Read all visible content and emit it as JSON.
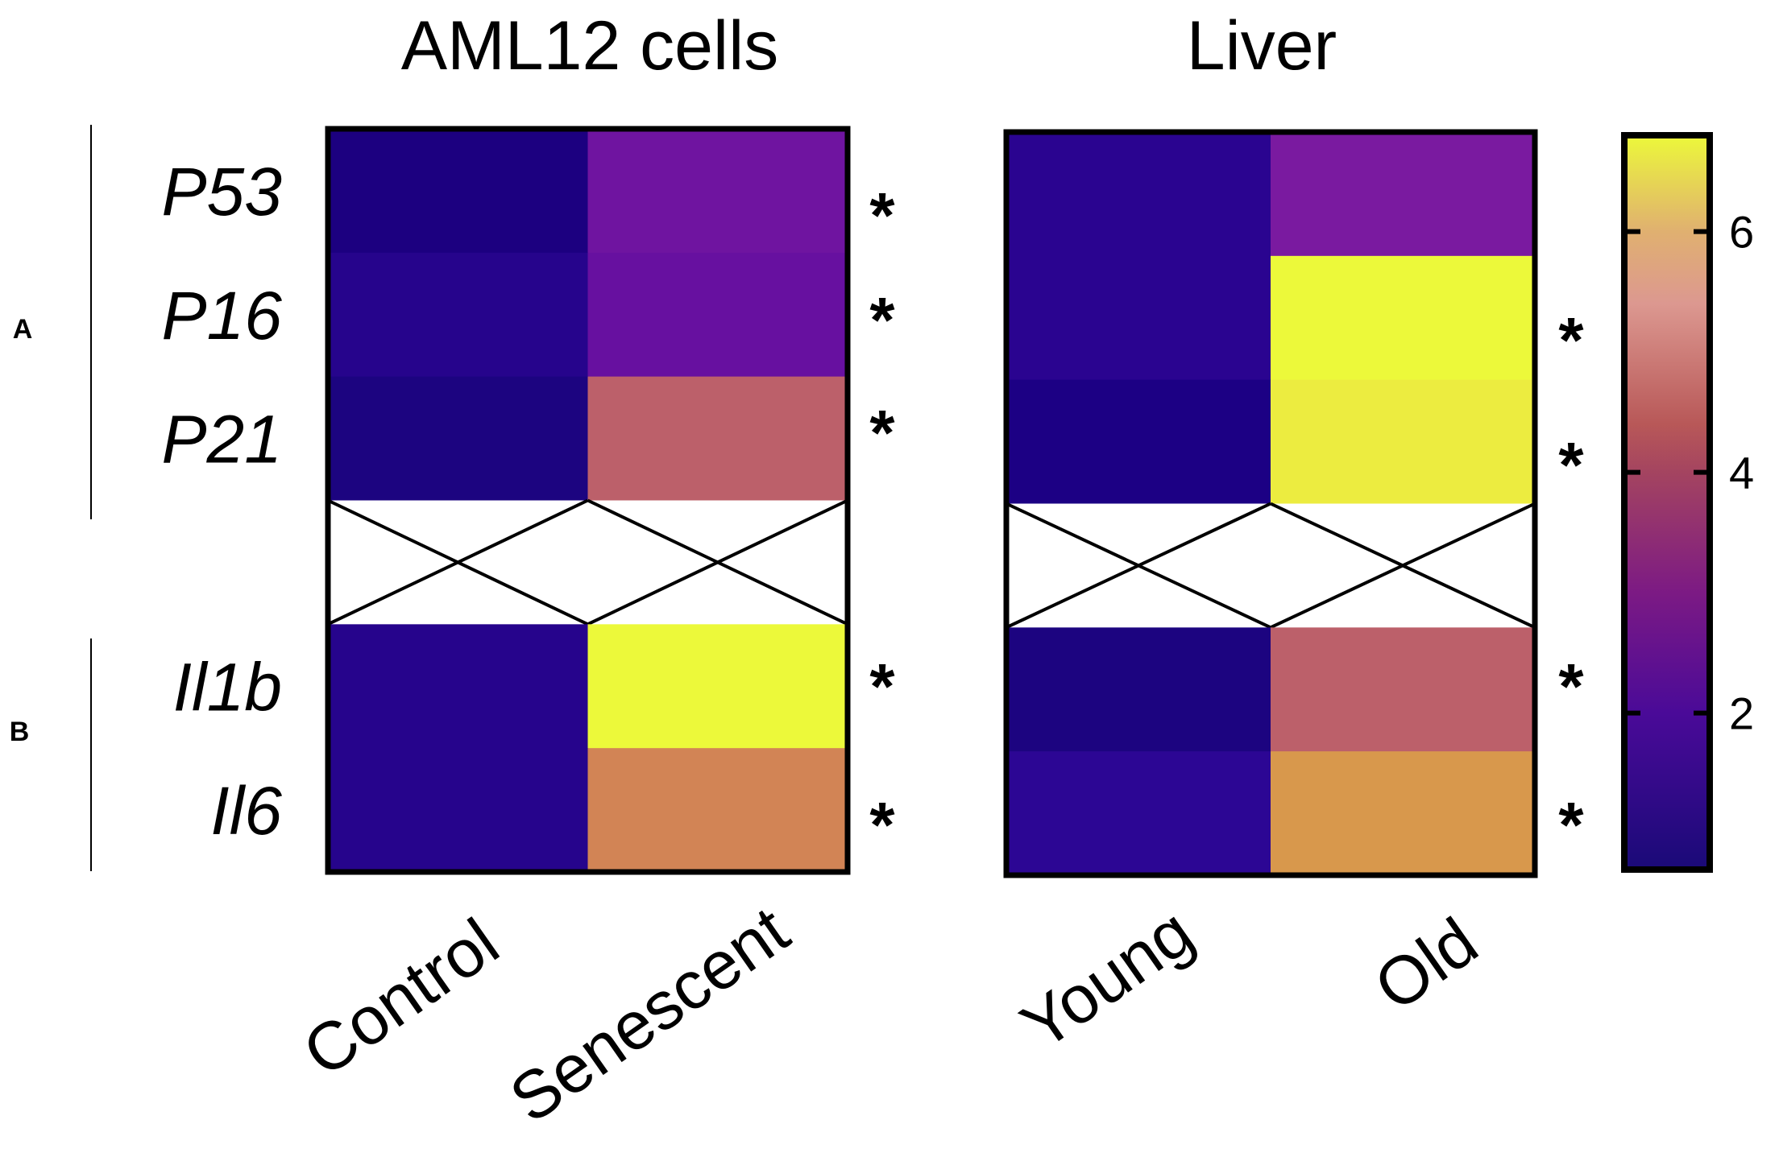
{
  "chart_data": [
    {
      "type": "heatmap",
      "title": "AML12 cells",
      "columns": [
        "Control",
        "Senescent"
      ],
      "rows": [
        "P53",
        "P16",
        "P21",
        "",
        "Il1b",
        "Il6"
      ],
      "row_groups": [
        {
          "label": "A",
          "rows": [
            "P53",
            "P16",
            "P21"
          ]
        },
        {
          "label": "B",
          "rows": [
            "Il1b",
            "Il6"
          ]
        }
      ],
      "values": [
        [
          1.0,
          2.4
        ],
        [
          1.2,
          2.2
        ],
        [
          1.0,
          4.6
        ],
        [
          null,
          null
        ],
        [
          1.2,
          6.8
        ],
        [
          1.2,
          5.5
        ]
      ],
      "colors": [
        [
          "#1c0080",
          "#6f14a0"
        ],
        [
          "#26048c",
          "#6710a0"
        ],
        [
          "#1c0480",
          "#bc606a"
        ],
        [
          null,
          null
        ],
        [
          "#26048c",
          "#ecf93a"
        ],
        [
          "#26048c",
          "#d28455"
        ]
      ],
      "significance": [
        "*",
        "*",
        "*",
        "",
        "*",
        "*"
      ]
    },
    {
      "type": "heatmap",
      "title": "Liver",
      "columns": [
        "Young",
        "Old"
      ],
      "rows": [
        "P53",
        "P16",
        "P21",
        "",
        "Il1b",
        "Il6"
      ],
      "values": [
        [
          1.3,
          2.6
        ],
        [
          1.3,
          6.8
        ],
        [
          1.0,
          6.7
        ],
        [
          null,
          null
        ],
        [
          1.0,
          4.6
        ],
        [
          1.3,
          5.9
        ]
      ],
      "colors": [
        [
          "#2a0490",
          "#7a1aa0"
        ],
        [
          "#2a0490",
          "#ecf93a"
        ],
        [
          "#1c0084",
          "#ecec40"
        ],
        [
          null,
          null
        ],
        [
          "#1c0480",
          "#bc606a"
        ],
        [
          "#2c0694",
          "#d8984c"
        ]
      ],
      "significance": [
        "",
        "*",
        "*",
        "",
        "*",
        "*"
      ]
    }
  ],
  "colorbar": {
    "range": [
      0.7,
      6.8
    ],
    "ticks": [
      "2",
      "4",
      "6"
    ],
    "stops": [
      {
        "v": 0.7,
        "c": "#1a0a78"
      },
      {
        "v": 2.0,
        "c": "#4a0a98"
      },
      {
        "v": 3.0,
        "c": "#7c1a84"
      },
      {
        "v": 4.0,
        "c": "#a44460"
      },
      {
        "v": 4.4,
        "c": "#b85858"
      },
      {
        "v": 5.4,
        "c": "#dc9890"
      },
      {
        "v": 6.0,
        "c": "#e0b070"
      },
      {
        "v": 6.8,
        "c": "#ecf83a"
      }
    ]
  }
}
